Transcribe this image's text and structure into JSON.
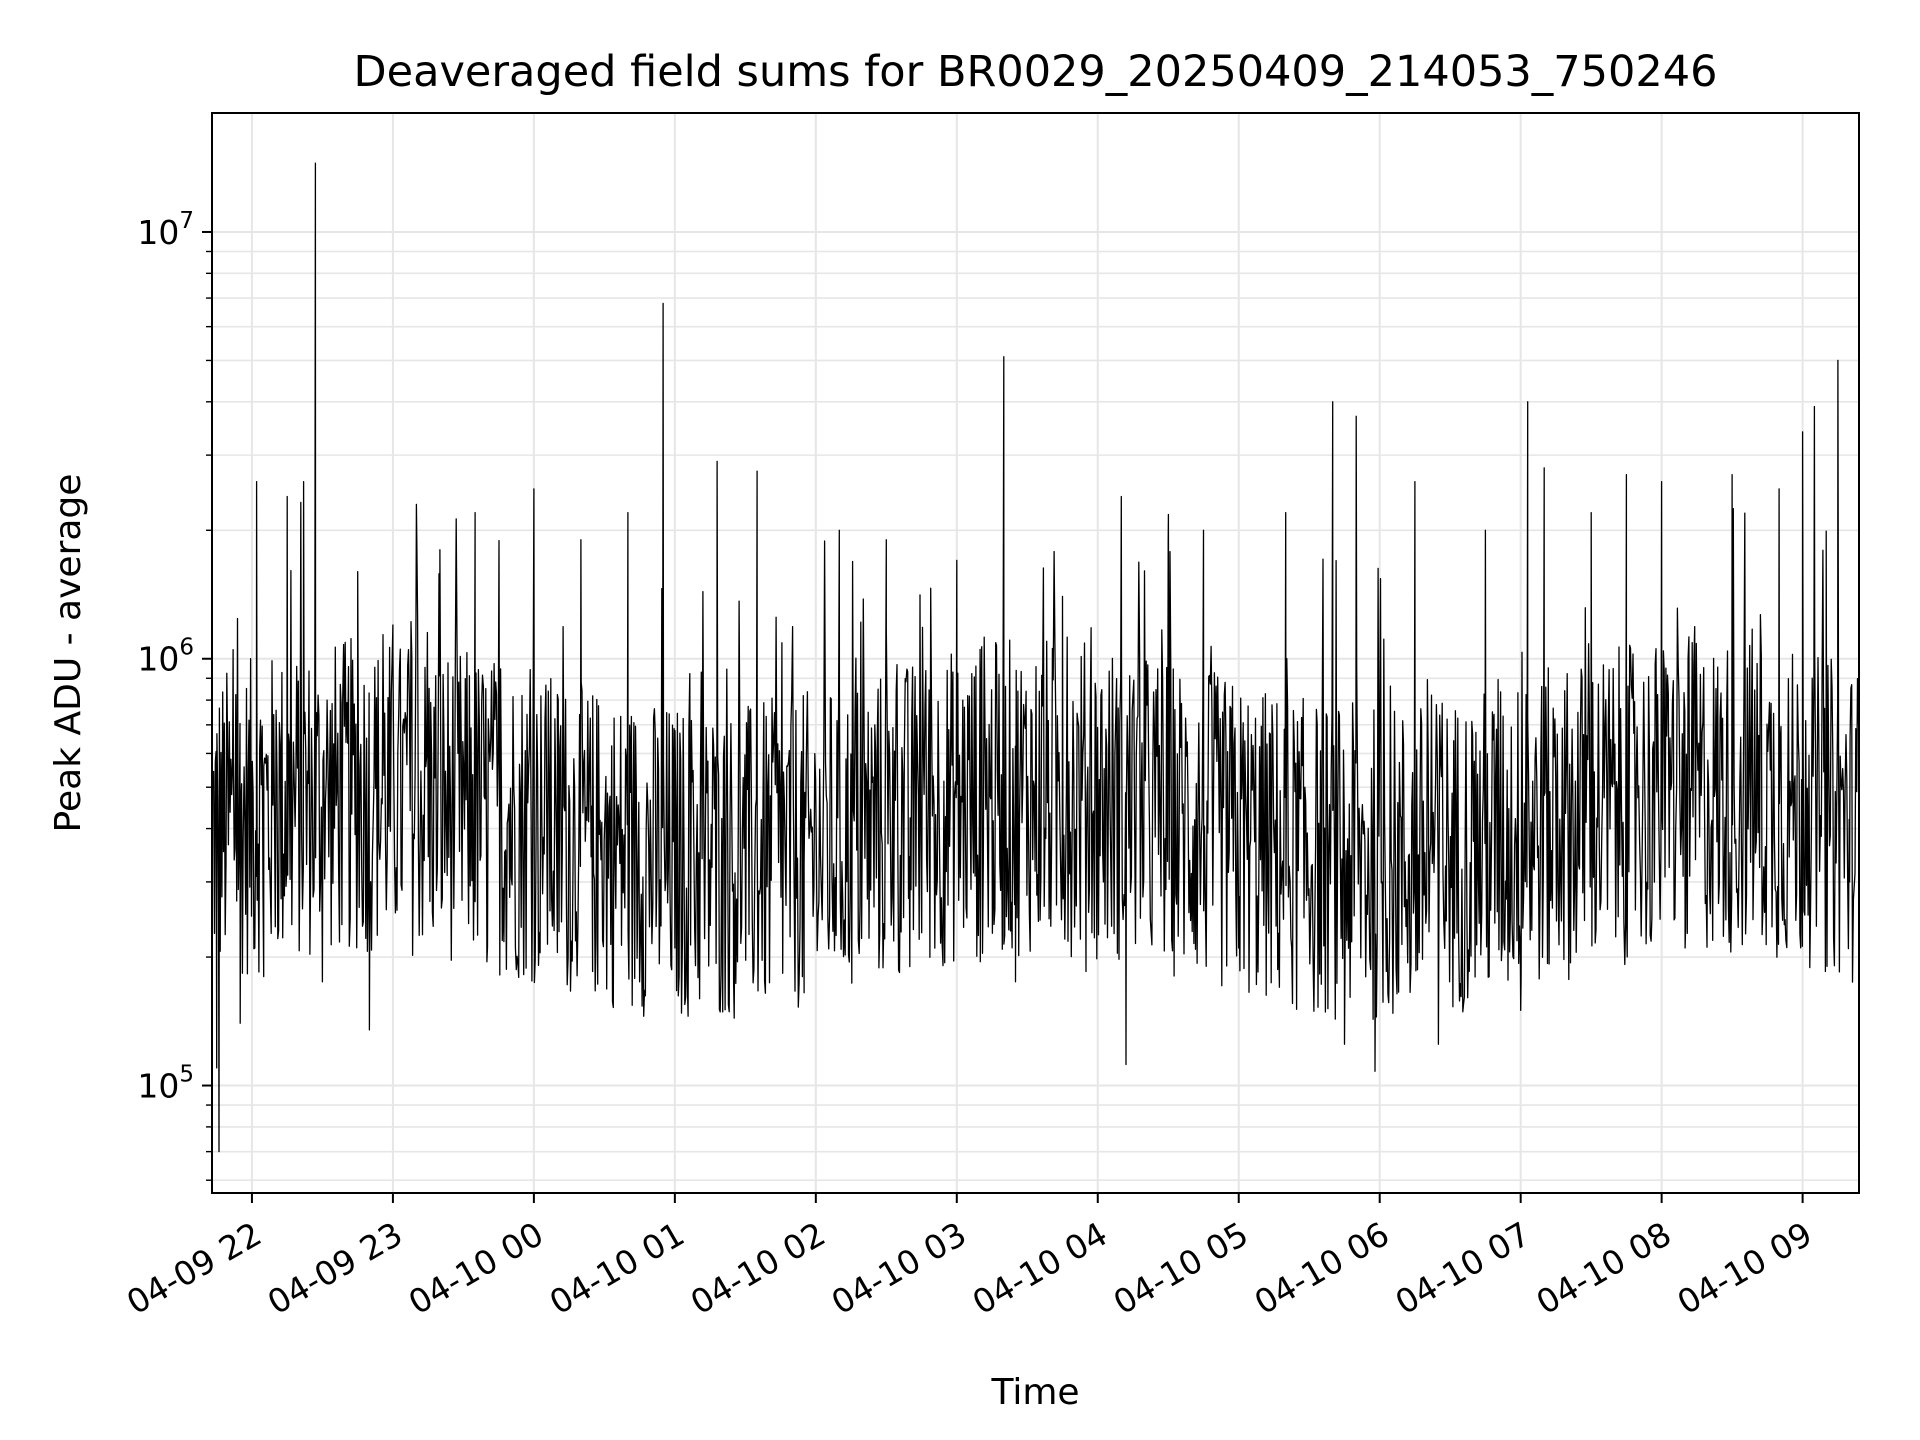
{
  "chart_data": {
    "type": "line",
    "title": "Deaveraged field sums for BR0029_20250409_214053_750246",
    "xlabel": "Time",
    "ylabel": "Peak ADU - average",
    "yscale": "log",
    "grid": true,
    "x_range": [
      "2025-04-09 21:43",
      "2025-04-10 09:24"
    ],
    "ylim": [
      56000,
      19000000
    ],
    "x_ticks": [
      {
        "value": "2025-04-09 22:00",
        "label": "04-09 22"
      },
      {
        "value": "2025-04-09 23:00",
        "label": "04-09 23"
      },
      {
        "value": "2025-04-10 00:00",
        "label": "04-10 00"
      },
      {
        "value": "2025-04-10 01:00",
        "label": "04-10 01"
      },
      {
        "value": "2025-04-10 02:00",
        "label": "04-10 02"
      },
      {
        "value": "2025-04-10 03:00",
        "label": "04-10 03"
      },
      {
        "value": "2025-04-10 04:00",
        "label": "04-10 04"
      },
      {
        "value": "2025-04-10 05:00",
        "label": "04-10 05"
      },
      {
        "value": "2025-04-10 06:00",
        "label": "04-10 06"
      },
      {
        "value": "2025-04-10 07:00",
        "label": "04-10 07"
      },
      {
        "value": "2025-04-10 08:00",
        "label": "04-10 08"
      },
      {
        "value": "2025-04-10 09:00",
        "label": "04-10 09"
      }
    ],
    "y_ticks": [
      {
        "value": 100000,
        "base": "10",
        "exp": "5"
      },
      {
        "value": 1000000,
        "base": "10",
        "exp": "6"
      },
      {
        "value": 10000000,
        "base": "10",
        "exp": "7"
      }
    ],
    "line_color": "#000000",
    "grid_color": "#e6e6e6",
    "series": [
      {
        "points": [
          [
            "2025-04-09 21:43",
            300000
          ],
          [
            "2025-04-09 21:45",
            110000
          ],
          [
            "2025-04-09 21:46",
            70000
          ],
          [
            "2025-04-09 21:48",
            520000
          ],
          [
            "2025-04-09 21:52",
            1050000
          ],
          [
            "2025-04-09 21:55",
            140000
          ],
          [
            "2025-04-09 22:02",
            2600000
          ],
          [
            "2025-04-09 22:05",
            180000
          ],
          [
            "2025-04-09 22:15",
            2400000
          ],
          [
            "2025-04-09 22:22",
            2600000
          ],
          [
            "2025-04-09 22:27",
            14500000
          ],
          [
            "2025-04-09 22:30",
            175000
          ],
          [
            "2025-04-09 22:45",
            1600000
          ],
          [
            "2025-04-09 22:50",
            135000
          ],
          [
            "2025-04-09 23:00",
            1200000
          ],
          [
            "2025-04-09 23:10",
            2300000
          ],
          [
            "2025-04-09 23:20",
            1800000
          ],
          [
            "2025-04-09 23:35",
            2200000
          ],
          [
            "2025-04-09 23:40",
            195000
          ],
          [
            "2025-04-10 00:00",
            2500000
          ],
          [
            "2025-04-10 00:10",
            205000
          ],
          [
            "2025-04-10 00:20",
            1900000
          ],
          [
            "2025-04-10 00:25",
            185000
          ],
          [
            "2025-04-10 00:40",
            2200000
          ],
          [
            "2025-04-10 00:55",
            6800000
          ],
          [
            "2025-04-10 01:00",
            210000
          ],
          [
            "2025-04-10 01:18",
            2900000
          ],
          [
            "2025-04-10 01:25",
            175000
          ],
          [
            "2025-04-10 01:35",
            2750000
          ],
          [
            "2025-04-10 01:55",
            165000
          ],
          [
            "2025-04-10 02:10",
            2000000
          ],
          [
            "2025-04-10 02:30",
            1900000
          ],
          [
            "2025-04-10 02:40",
            190000
          ],
          [
            "2025-04-10 03:00",
            1700000
          ],
          [
            "2025-04-10 03:10",
            195000
          ],
          [
            "2025-04-10 03:20",
            5100000
          ],
          [
            "2025-04-10 03:25",
            175000
          ],
          [
            "2025-04-10 03:45",
            1400000
          ],
          [
            "2025-04-10 03:55",
            185000
          ],
          [
            "2025-04-10 04:10",
            2400000
          ],
          [
            "2025-04-10 04:12",
            112000
          ],
          [
            "2025-04-10 04:30",
            1900000
          ],
          [
            "2025-04-10 04:45",
            2000000
          ],
          [
            "2025-04-10 05:00",
            210000
          ],
          [
            "2025-04-10 05:20",
            2200000
          ],
          [
            "2025-04-10 05:40",
            4000000
          ],
          [
            "2025-04-10 05:45",
            125000
          ],
          [
            "2025-04-10 05:50",
            3700000
          ],
          [
            "2025-04-10 05:58",
            108000
          ],
          [
            "2025-04-10 06:15",
            2600000
          ],
          [
            "2025-04-10 06:25",
            125000
          ],
          [
            "2025-04-10 06:45",
            2000000
          ],
          [
            "2025-04-10 07:00",
            150000
          ],
          [
            "2025-04-10 07:03",
            4000000
          ],
          [
            "2025-04-10 07:10",
            2800000
          ],
          [
            "2025-04-10 07:30",
            2200000
          ],
          [
            "2025-04-10 07:45",
            2700000
          ],
          [
            "2025-04-10 08:00",
            2600000
          ],
          [
            "2025-04-10 08:10",
            210000
          ],
          [
            "2025-04-10 08:30",
            2700000
          ],
          [
            "2025-04-10 08:50",
            2500000
          ],
          [
            "2025-04-10 09:00",
            3400000
          ],
          [
            "2025-04-10 09:05",
            3900000
          ],
          [
            "2025-04-10 09:10",
            550000
          ],
          [
            "2025-04-10 09:15",
            5000000
          ],
          [
            "2025-04-10 09:20",
            300000
          ],
          [
            "2025-04-10 09:24",
            650000
          ]
        ]
      }
    ]
  }
}
